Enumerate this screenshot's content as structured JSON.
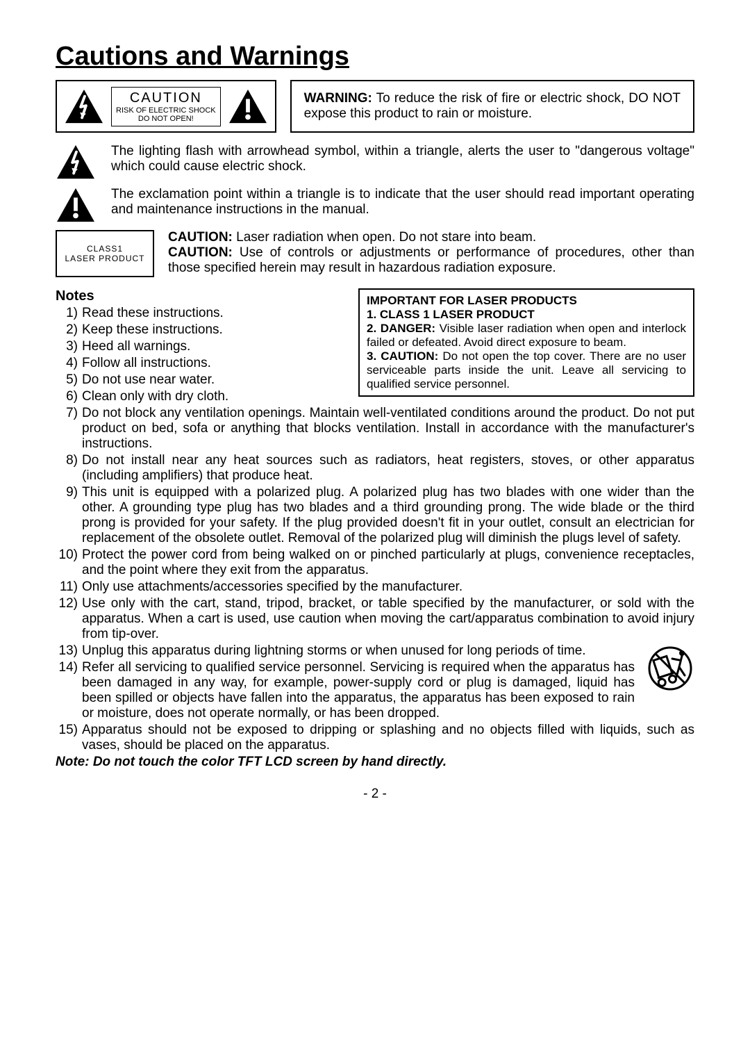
{
  "title": "Cautions and Warnings",
  "caution_label": {
    "title": "CAUTION",
    "line1": "RISK OF ELECTRIC SHOCK",
    "line2": "DO NOT OPEN!"
  },
  "warning_box": {
    "strong": "WARNING:",
    "text": " To reduce the risk of fire or electric shock, DO NOT expose this product to rain or moisture."
  },
  "explain1": "The lighting flash with arrowhead symbol, within a triangle, alerts the user to \"dangerous voltage\" which could cause electric shock.",
  "explain2": "The exclamation point within a triangle is to indicate that the user should read important operating and maintenance instructions in the manual.",
  "laser_label": {
    "l1": "CLASS1",
    "l2": "LASER PRODUCT"
  },
  "laser_text": {
    "c1_strong": "CAUTION:",
    "c1": " Laser radiation when open. Do not stare into beam.",
    "c2_strong": "CAUTION:",
    "c2": " Use of controls or adjustments or performance of procedures, other than those specified herein may result in hazardous radiation exposure."
  },
  "laser_box": {
    "h1": "IMPORTANT FOR LASER PRODUCTS",
    "h2": "1. CLASS 1 LASER PRODUCT",
    "d_strong": "2. DANGER:",
    "d": " Visible laser radiation when open and interlock failed or defeated. Avoid direct exposure to beam.",
    "c_strong": "3. CAUTION:",
    "c": " Do not open the top cover. There are no user serviceable parts inside the unit. Leave all servicing to qualified service personnel."
  },
  "notes_heading": "Notes",
  "notes": [
    "Read these instructions.",
    "Keep these instructions.",
    "Heed all warnings.",
    "Follow all instructions.",
    "Do not use near water.",
    "Clean only with dry cloth.",
    "Do not block any ventilation openings. Maintain well-ventilated conditions around the product. Do not put product on bed, sofa or anything that blocks ventilation.  Install in accordance with the manufacturer's instructions.",
    "Do not install near any heat sources such as radiators, heat registers, stoves, or other apparatus (including amplifiers) that produce heat.",
    "This unit is equipped with a polarized plug. A polarized plug has two blades with one wider than the other. A grounding type plug has two blades and a third grounding prong. The wide blade or the third prong is provided for your safety. If the plug provided doesn't fit in your outlet, consult an electrician for replacement of the obsolete outlet. Removal of the polarized plug will diminish the plugs level of safety.",
    "Protect the power cord from being walked on or pinched particularly at plugs, convenience receptacles, and the point where they exit from the apparatus.",
    "Only use attachments/accessories specified by the manufacturer.",
    "Use only with the cart, stand, tripod, bracket, or table specified by the manufacturer, or sold with the apparatus. When a cart is used, use caution when moving the cart/apparatus combination to avoid injury from tip-over.",
    "Unplug this apparatus during lightning storms or when unused for long periods of time.",
    "Refer all servicing to qualified service personnel. Servicing is required when the apparatus has been damaged in any way, for example, power-supply cord or plug is damaged, liquid has been spilled or objects have fallen into the apparatus, the apparatus has been exposed to rain or moisture, does not operate normally, or has been dropped.",
    "Apparatus should not be exposed to dripping or splashing and no objects filled with liquids, such as vases, should be placed on the apparatus."
  ],
  "footer_note": "Note: Do not touch the color TFT LCD screen by hand directly.",
  "page_number": "- 2 -"
}
